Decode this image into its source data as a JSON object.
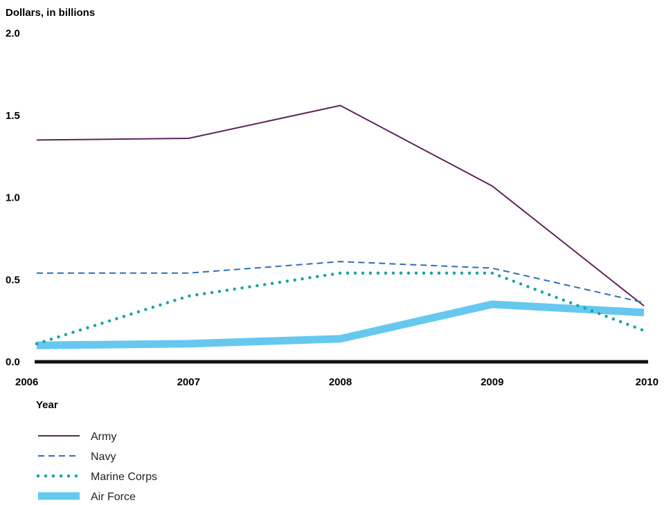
{
  "chart_data": {
    "type": "line",
    "title": "",
    "ylabel": "Dollars, in billions",
    "xlabel": "Year",
    "categories": [
      "2006",
      "2007",
      "2008",
      "2009",
      "2010"
    ],
    "ylim": [
      0,
      2.0
    ],
    "yticks": [
      "0.0",
      "0.5",
      "1.0",
      "1.5",
      "2.0"
    ],
    "grid": false,
    "legend_position": "bottom-left",
    "series": [
      {
        "name": "Army",
        "values": [
          1.35,
          1.36,
          1.56,
          1.07,
          0.34
        ],
        "color": "#5c2557",
        "style": "solid"
      },
      {
        "name": "Navy",
        "values": [
          0.54,
          0.54,
          0.61,
          0.57,
          0.36
        ],
        "color": "#2f6db5",
        "style": "dashed"
      },
      {
        "name": "Marine Corps",
        "values": [
          0.11,
          0.4,
          0.54,
          0.54,
          0.19
        ],
        "color": "#1aa3a0",
        "style": "dotted"
      },
      {
        "name": "Air Force",
        "values": [
          0.1,
          0.11,
          0.14,
          0.35,
          0.3
        ],
        "color": "#66c8ef",
        "style": "thick"
      }
    ]
  }
}
